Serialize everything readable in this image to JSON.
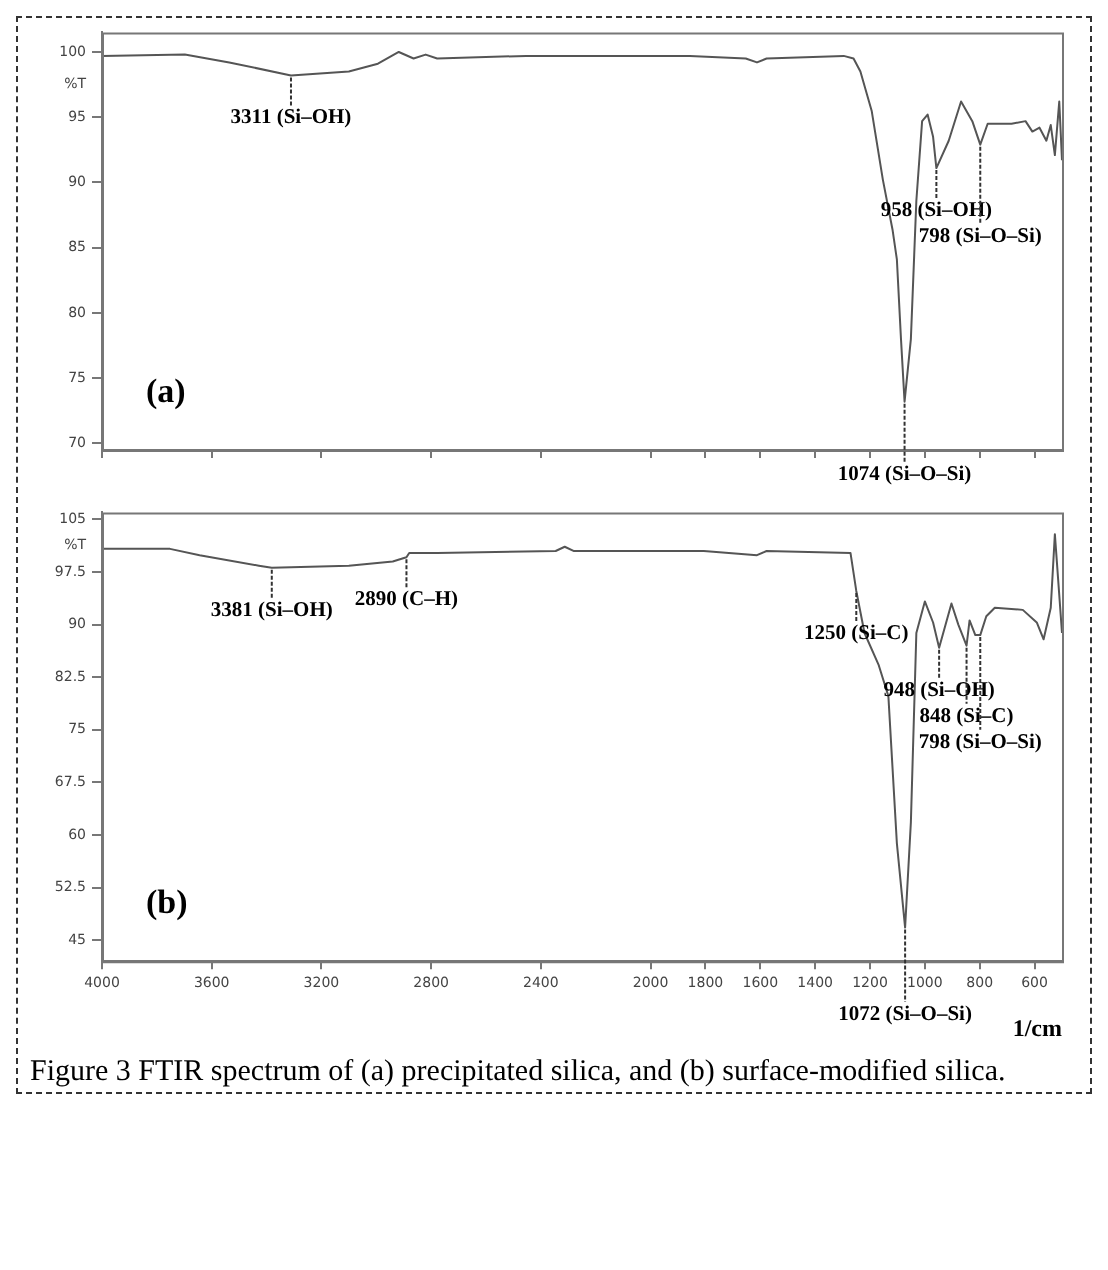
{
  "chart_data": [
    {
      "type": "line",
      "title": "(a)",
      "ylabel": "%T",
      "x": [
        4000,
        3698,
        3536,
        3311,
        3100,
        2994,
        2918,
        2864,
        2820,
        2778,
        2454,
        1857,
        1653,
        1612,
        1577,
        1296,
        1260,
        1235,
        1194,
        1153,
        1118,
        1102,
        1087,
        1074,
        1051,
        1031,
        1010,
        990,
        970,
        958,
        913,
        868,
        827,
        798,
        771,
        684,
        633,
        608,
        582,
        557,
        541,
        526,
        510,
        500
      ],
      "series": [
        {
          "color": "#555555",
          "values": [
            99.7,
            99.8,
            99.2,
            98.2,
            98.5,
            99.1,
            100.0,
            99.5,
            99.8,
            99.5,
            99.7,
            99.7,
            99.5,
            99.2,
            99.5,
            99.7,
            99.5,
            98.5,
            95.5,
            90.2,
            86.4,
            84.1,
            78.0,
            73.2,
            78.0,
            88.6,
            94.7,
            95.2,
            93.5,
            91.1,
            93.2,
            96.2,
            94.7,
            92.9,
            94.5,
            94.5,
            94.7,
            93.9,
            94.2,
            93.2,
            94.4,
            92.1,
            96.2,
            91.7
          ]
        }
      ],
      "xlim": [
        4000,
        500
      ],
      "xticks": [
        4000,
        3600,
        3200,
        2800,
        2400,
        2000,
        1800,
        1600,
        1400,
        1200,
        1000,
        800,
        600
      ],
      "ylim": [
        69.5,
        101.5
      ],
      "yticks": [
        70,
        75,
        80,
        85,
        90,
        95,
        100
      ],
      "tick_labels": "y",
      "grid": false,
      "legend": false,
      "marker": "none",
      "line_style": "solid",
      "annotations": [
        {
          "text": "3311 (Si–OH)",
          "x": 3311,
          "y": 98.2
        },
        {
          "text": "1074 (Si–O–Si)",
          "x": 1074,
          "y": 73.2
        },
        {
          "text": "958 (Si–OH)",
          "x": 958,
          "y": 91.1
        },
        {
          "text": "798 (Si–O–Si)",
          "x": 798,
          "y": 92.9
        }
      ]
    },
    {
      "type": "line",
      "title": "(b)",
      "ylabel": "%T",
      "xlabel": "1/cm",
      "x": [
        4000,
        3752,
        3644,
        3428,
        3381,
        3100,
        2940,
        2890,
        2880,
        2778,
        2346,
        2313,
        2281,
        1806,
        1612,
        1577,
        1271,
        1250,
        1220,
        1169,
        1133,
        1102,
        1072,
        1051,
        1031,
        1000,
        970,
        948,
        903,
        878,
        848,
        837,
        816,
        798,
        776,
        745,
        643,
        592,
        567,
        541,
        526,
        500
      ],
      "series": [
        {
          "color": "#555555",
          "values": [
            100.8,
            100.8,
            99.9,
            98.4,
            98.1,
            98.4,
            99.0,
            99.6,
            100.2,
            100.2,
            100.5,
            101.1,
            100.5,
            100.5,
            99.9,
            100.5,
            100.2,
            94.8,
            88.8,
            84.3,
            79.8,
            58.8,
            46.8,
            61.8,
            88.8,
            93.3,
            90.3,
            86.7,
            93.0,
            90.0,
            87.0,
            90.6,
            88.5,
            88.5,
            91.2,
            92.4,
            92.1,
            90.3,
            87.9,
            92.4,
            102.9,
            88.8
          ]
        }
      ],
      "xlim": [
        4000,
        500
      ],
      "xticks": [
        4000,
        3600,
        3200,
        2800,
        2400,
        2000,
        1800,
        1600,
        1400,
        1200,
        1000,
        800,
        600
      ],
      "ylim": [
        42,
        106
      ],
      "yticks": [
        45,
        52.5,
        60,
        67.5,
        75,
        82.5,
        90,
        97.5,
        105
      ],
      "grid": false,
      "legend": false,
      "marker": "none",
      "line_style": "solid",
      "annotations": [
        {
          "text": "3381 (Si–OH)",
          "x": 3381,
          "y": 98.1
        },
        {
          "text": "2890 (C–H)",
          "x": 2890,
          "y": 99.6
        },
        {
          "text": "1250 (Si–C)",
          "x": 1250,
          "y": 94.8
        },
        {
          "text": "1072 (Si–O–Si)",
          "x": 1072,
          "y": 46.8
        },
        {
          "text": "948 (Si–OH)",
          "x": 948,
          "y": 86.7
        },
        {
          "text": "848 (Si–C)",
          "x": 848,
          "y": 87.0
        },
        {
          "text": "798 (Si–O–Si)",
          "x": 798,
          "y": 88.5
        },
        "Figure 3 FTIR spectrum of (a) precipitated silica, and (b) surface-modified silica."
      ]
    }
  ]
}
